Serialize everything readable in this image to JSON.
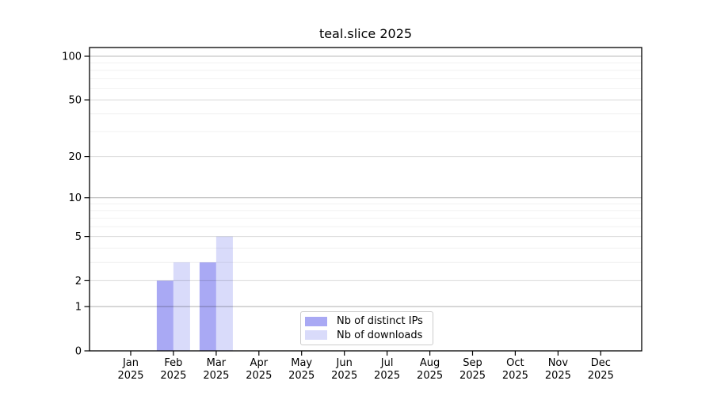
{
  "chart_data": {
    "type": "bar",
    "title": "teal.slice 2025",
    "x_month_labels": [
      "Jan",
      "Feb",
      "Mar",
      "Apr",
      "May",
      "Jun",
      "Jul",
      "Aug",
      "Sep",
      "Oct",
      "Nov",
      "Dec"
    ],
    "x_year_label": "2025",
    "series": [
      {
        "name": "Nb of distinct IPs",
        "color": "#a9a9f4",
        "values": [
          0,
          2,
          3,
          0,
          0,
          0,
          0,
          0,
          0,
          0,
          0,
          0
        ]
      },
      {
        "name": "Nb of downloads",
        "color": "#d9dbfa",
        "values": [
          0,
          3,
          5,
          0,
          0,
          0,
          0,
          0,
          0,
          0,
          0,
          0
        ]
      }
    ],
    "y_axis": {
      "scale": "log(1+x)",
      "tick_labels": [
        "100",
        "50",
        "20",
        "10",
        "5",
        "2",
        "1",
        "0"
      ],
      "tick_values": [
        100,
        50,
        20,
        10,
        5,
        2,
        1,
        0
      ],
      "decade_tick_values": [
        100,
        10,
        1
      ],
      "semi_tick_values": [
        50,
        20,
        5,
        2
      ],
      "minor_tick_values": [
        90,
        80,
        70,
        60,
        40,
        30,
        9,
        8,
        7,
        6,
        4,
        3
      ],
      "top_value": 115
    },
    "legend_position": "lower center",
    "grid": "on"
  }
}
